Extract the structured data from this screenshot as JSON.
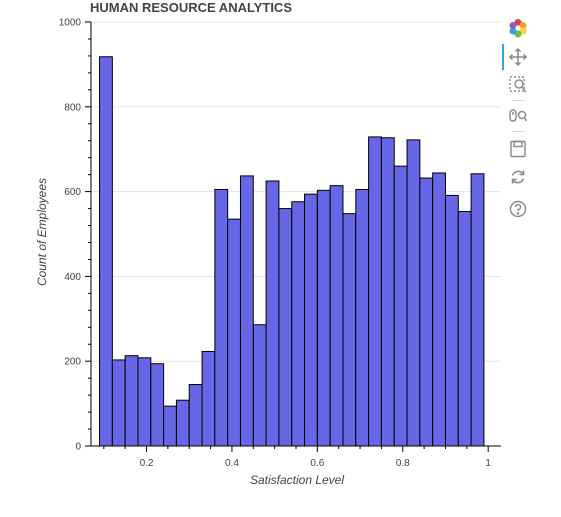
{
  "chart_data": {
    "type": "bar",
    "title": "HUMAN RESOURCE ANALYTICS",
    "xlabel": "Satisfaction Level",
    "ylabel": "Count of Employees",
    "xlim": [
      0.07,
      1.03
    ],
    "ylim": [
      0,
      1000
    ],
    "x_ticks": [
      0.2,
      0.4,
      0.6,
      0.8,
      1
    ],
    "x_tick_labels": [
      "0.2",
      "0.4",
      "0.6",
      "0.8",
      "1"
    ],
    "y_ticks": [
      0,
      200,
      400,
      600,
      800,
      1000
    ],
    "y_tick_labels": [
      "0",
      "200",
      "400",
      "600",
      "800",
      "1000"
    ],
    "bin_edges": [
      0.09,
      0.12,
      0.15,
      0.18,
      0.21,
      0.24,
      0.27,
      0.3,
      0.33,
      0.36,
      0.39,
      0.42,
      0.45,
      0.48,
      0.51,
      0.54,
      0.57,
      0.6,
      0.63,
      0.66,
      0.69,
      0.72,
      0.75,
      0.78,
      0.81,
      0.84,
      0.87,
      0.9,
      0.93,
      0.96,
      0.99
    ],
    "values": [
      918,
      203,
      213,
      208,
      194,
      94,
      108,
      145,
      223,
      605,
      535,
      637,
      286,
      625,
      560,
      576,
      594,
      603,
      614,
      548,
      605,
      729,
      727,
      660,
      722,
      632,
      644,
      591,
      553,
      642
    ],
    "bar_color": "#6666e6",
    "bar_outline": "#000000",
    "grid": true
  },
  "toolbar": {
    "tools": [
      {
        "name": "bokeh-logo",
        "title": "Bokeh"
      },
      {
        "name": "pan-tool",
        "title": "Pan",
        "active": true
      },
      {
        "name": "box-zoom-tool",
        "title": "Box Zoom"
      },
      {
        "name": "wheel-zoom-tool",
        "title": "Wheel Zoom"
      },
      {
        "name": "save-tool",
        "title": "Save"
      },
      {
        "name": "reset-tool",
        "title": "Reset"
      },
      {
        "name": "help-tool",
        "title": "Help"
      }
    ]
  }
}
